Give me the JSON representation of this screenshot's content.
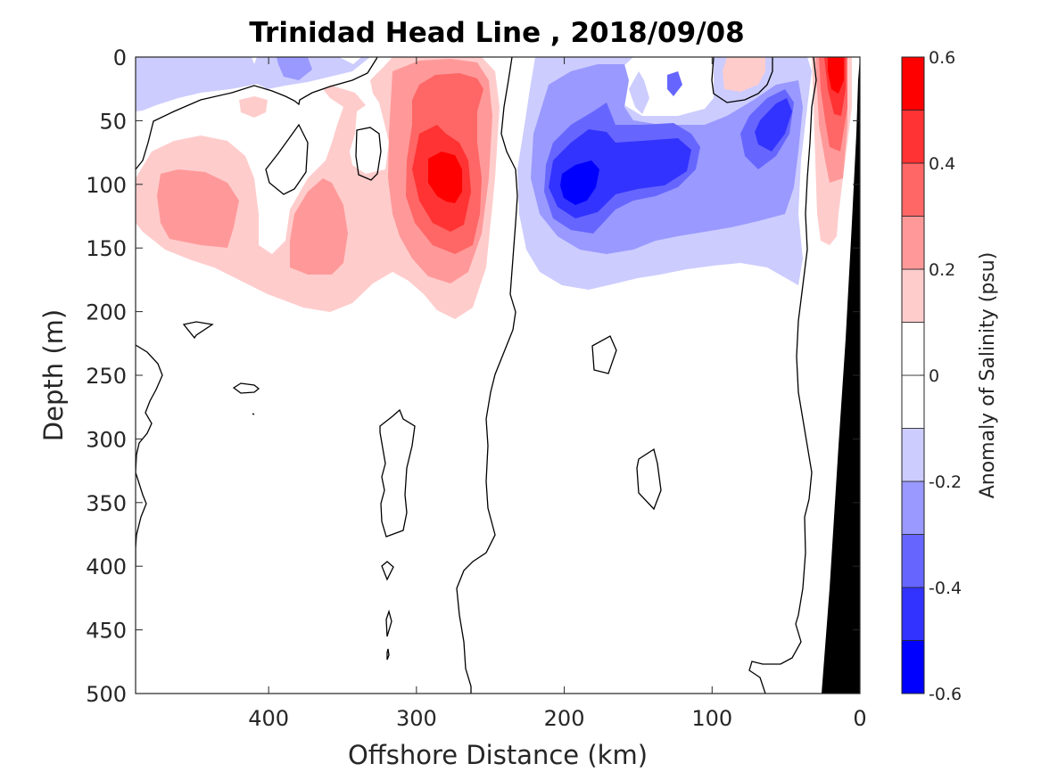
{
  "chart_data": {
    "type": "heatmap",
    "subtype": "filled-contour-section",
    "title": "Trinidad Head Line , 2018/09/08",
    "xlabel": "Offshore Distance (km)",
    "ylabel": "Depth (m)",
    "xlim": [
      490,
      0
    ],
    "ylim": [
      0,
      500
    ],
    "x_reversed": true,
    "y_reversed": true,
    "xticks": [
      400,
      300,
      200,
      100,
      0
    ],
    "xtick_labels": [
      "400",
      "300",
      "200",
      "100",
      "0"
    ],
    "yticks": [
      0,
      50,
      100,
      150,
      200,
      250,
      300,
      350,
      400,
      450,
      500
    ],
    "ytick_labels": [
      "0",
      "50",
      "100",
      "150",
      "200",
      "250",
      "300",
      "350",
      "400",
      "450",
      "500"
    ],
    "colorbar": {
      "label": "Anomaly of Salinity (psu)",
      "range": [
        -0.6,
        0.6
      ],
      "levels": [
        -0.6,
        -0.5,
        -0.4,
        -0.3,
        -0.2,
        -0.1,
        0,
        0.1,
        0.2,
        0.3,
        0.4,
        0.5,
        0.6
      ],
      "ticks": [
        0.6,
        0.4,
        0.2,
        0,
        -0.2,
        -0.4,
        -0.6
      ],
      "tick_labels": [
        "0.6",
        "0.4",
        "0.2",
        "0",
        "-0.2",
        "-0.4",
        "-0.6"
      ],
      "colors": [
        "#0000ff",
        "#3333ff",
        "#6666ff",
        "#9999ff",
        "#ccccff",
        "#ffffff",
        "#ffffff",
        "#ffcccc",
        "#ff9999",
        "#ff6666",
        "#ff3333",
        "#ff0000"
      ],
      "placement": "right"
    },
    "features": [
      {
        "name": "positive anomaly core offshore",
        "center_km": 280,
        "center_depth_m": 95,
        "peak_value": 0.5
      },
      {
        "name": "positive anomaly west",
        "center_km": 445,
        "center_depth_m": 125,
        "peak_value": 0.3
      },
      {
        "name": "positive anomaly mid",
        "center_km": 350,
        "center_depth_m": 150,
        "peak_value": 0.3
      },
      {
        "name": "negative anomaly core",
        "center_km": 190,
        "center_depth_m": 100,
        "peak_value": -0.5
      },
      {
        "name": "negative anomaly nearshore",
        "center_km": 55,
        "center_depth_m": 60,
        "peak_value": -0.4
      },
      {
        "name": "positive anomaly coastal",
        "center_km": 15,
        "center_depth_m": 30,
        "peak_value": 0.6
      }
    ],
    "bathymetry": {
      "description": "continental slope (black)",
      "surface_km": 0,
      "bottom_km": 25,
      "bottom_depth_m": 500
    },
    "zero_contour": true,
    "grid": false
  }
}
